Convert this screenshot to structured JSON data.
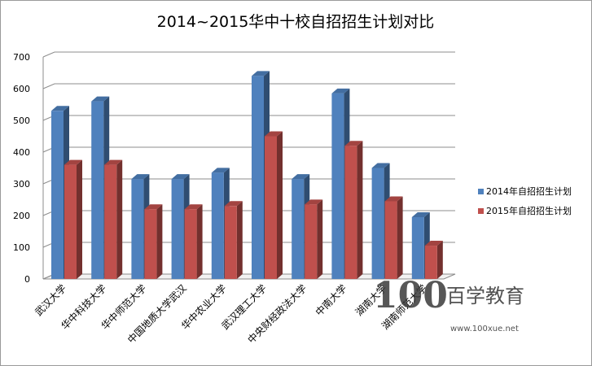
{
  "chart_data": {
    "type": "bar",
    "title": "2014~2015华中十校自招招生计划对比",
    "xlabel": "",
    "ylabel": "",
    "ylim": [
      0,
      700
    ],
    "yticks": [
      0,
      100,
      200,
      300,
      400,
      500,
      600,
      700
    ],
    "grid": true,
    "legend_position": "right",
    "categories": [
      "武汉大学",
      "华中科技大学",
      "华中师范大学",
      "中国地质大学武汉",
      "华中农业大学",
      "武汉理工大学",
      "中央财经政法大学",
      "中南大学",
      "湖南大学",
      "湖南师范大学"
    ],
    "series": [
      {
        "name": "2014年自招招生计划",
        "color": "#4F81BD",
        "values": [
          530,
          560,
          315,
          315,
          335,
          640,
          315,
          585,
          350,
          195
        ]
      },
      {
        "name": "2015年自招招生计划",
        "color": "#C0504D",
        "values": [
          360,
          360,
          220,
          220,
          230,
          450,
          235,
          420,
          245,
          105
        ]
      }
    ]
  },
  "watermark": {
    "logo_text": "100",
    "name": "百学教育",
    "url": "www.100xue.net"
  }
}
